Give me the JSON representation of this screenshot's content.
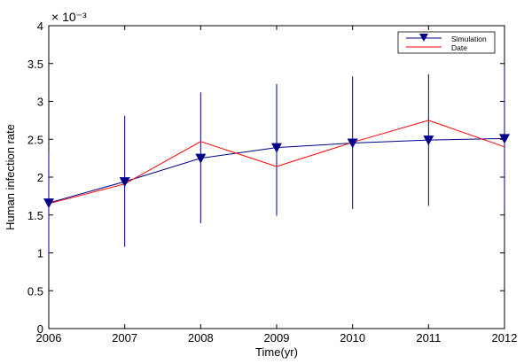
{
  "chart_data": {
    "type": "line",
    "xlabel": "Time(yr)",
    "ylabel": "Human infection rate",
    "y_multiplier_label": "× 10⁻³",
    "x": [
      2006,
      2007,
      2008,
      2009,
      2010,
      2011,
      2012
    ],
    "xlim": [
      2006,
      2012
    ],
    "ylim": [
      0,
      4
    ],
    "xticks": [
      "2006",
      "2007",
      "2008",
      "2009",
      "2010",
      "2011",
      "2012"
    ],
    "yticks": [
      "0",
      "0.5",
      "1",
      "1.5",
      "2",
      "2.5",
      "3",
      "3.5",
      "4"
    ],
    "y_tick_values": [
      0,
      0.5,
      1,
      1.5,
      2,
      2.5,
      3,
      3.5,
      4
    ],
    "grid": false,
    "legend_position": "top-right",
    "series": [
      {
        "name": "Simulation",
        "color": "#00008b",
        "marker": "triangle-down",
        "values": [
          1.66,
          1.94,
          2.25,
          2.39,
          2.45,
          2.49,
          2.51
        ],
        "error_low": [
          0.98,
          1.08,
          1.39,
          1.49,
          1.58,
          1.62,
          1.55
        ],
        "error_high": [
          2.34,
          2.81,
          3.12,
          3.23,
          3.33,
          3.36,
          3.47
        ]
      },
      {
        "name": "Date",
        "color": "#ff0000",
        "marker": "none",
        "values": [
          1.65,
          1.91,
          2.47,
          2.14,
          2.46,
          2.75,
          2.4
        ]
      }
    ]
  }
}
